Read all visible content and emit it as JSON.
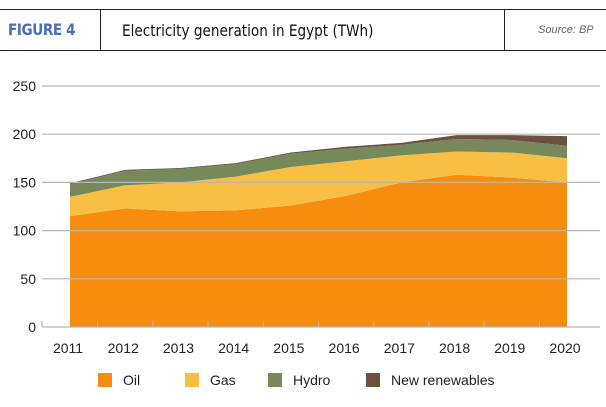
{
  "header": {
    "figure_label": "FIGURE 4",
    "title": "Electricity generation in Egypt (TWh)",
    "source": "Source: BP"
  },
  "chart_data": {
    "type": "area",
    "stacked": true,
    "title": "Electricity generation in Egypt (TWh)",
    "xlabel": "",
    "ylabel": "",
    "categories": [
      "2011",
      "2012",
      "2013",
      "2014",
      "2015",
      "2016",
      "2017",
      "2018",
      "2019",
      "2020"
    ],
    "yticks": [
      0,
      50,
      100,
      150,
      200,
      250
    ],
    "ylim": [
      0,
      250
    ],
    "grid": true,
    "legend_position": "bottom",
    "series": [
      {
        "name": "Oil",
        "color": "#f68d0e",
        "values": [
          115,
          123,
          120,
          121,
          126,
          136,
          150,
          158,
          155,
          150
        ]
      },
      {
        "name": "Gas",
        "color": "#f9bf45",
        "values": [
          20,
          24,
          30,
          35,
          40,
          36,
          28,
          24,
          26,
          25
        ]
      },
      {
        "name": "Hydro",
        "color": "#76895a",
        "values": [
          13,
          15,
          14,
          13,
          14,
          13,
          11,
          13,
          13,
          13
        ]
      },
      {
        "name": "New renewables",
        "color": "#6e5040",
        "values": [
          1,
          1,
          1,
          1,
          1,
          2,
          2,
          4,
          5,
          10
        ]
      }
    ]
  }
}
